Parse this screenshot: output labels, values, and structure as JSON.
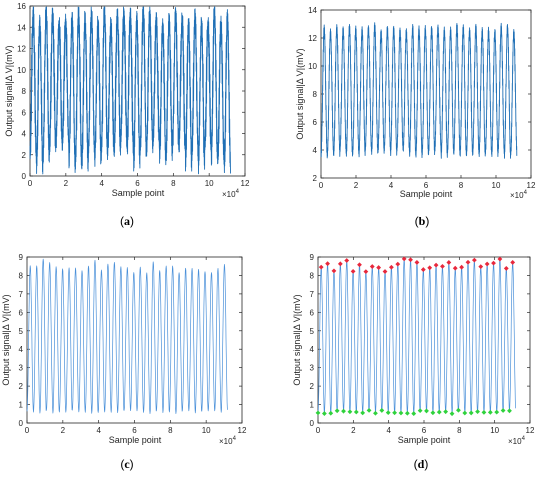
{
  "figure": {
    "panels": [
      {
        "id": "a",
        "label_text": "(a)",
        "letter": "a"
      },
      {
        "id": "b",
        "label_text": "(b)",
        "letter": "b"
      },
      {
        "id": "c",
        "label_text": "(c)",
        "letter": "c"
      },
      {
        "id": "d",
        "label_text": "(d)",
        "letter": "d"
      }
    ]
  },
  "chart_data": [
    {
      "id": "a",
      "type": "line",
      "title": "",
      "xlabel": "Sample point",
      "ylabel": "Output signal|Δ V|(mV)",
      "x_exponent_label": "×10",
      "x_exponent_power": "4",
      "xlim": [
        0,
        12
      ],
      "ylim": [
        0,
        16
      ],
      "xticks": [
        0,
        2,
        4,
        6,
        8,
        10,
        12
      ],
      "yticks": [
        0,
        2,
        4,
        6,
        8,
        10,
        12,
        14,
        16
      ],
      "x_range_data": [
        0,
        11.2
      ],
      "cycles": 31,
      "signal": {
        "peak_range": [
          14,
          15.5
        ],
        "trough_range": [
          0.8,
          3.5
        ],
        "noise_band_mV": 3.0
      },
      "line_color": "#1f6fb5",
      "grid": false
    },
    {
      "id": "b",
      "type": "line",
      "title": "",
      "xlabel": "Sample point",
      "ylabel": "Output signal|Δ V|(mV)",
      "x_exponent_label": "×10",
      "x_exponent_power": "4",
      "xlim": [
        0,
        12
      ],
      "ylim": [
        2,
        14
      ],
      "xticks": [
        0,
        2,
        4,
        6,
        8,
        10,
        12
      ],
      "yticks": [
        2,
        4,
        6,
        8,
        10,
        12,
        14
      ],
      "x_range_data": [
        0,
        11.2
      ],
      "cycles": 31,
      "signal": {
        "peak_range": [
          12.4,
          12.9
        ],
        "trough_range": [
          3.6,
          4.2
        ],
        "noise_band_mV": 0.8
      },
      "line_color": "#1f6fb5",
      "grid": false
    },
    {
      "id": "c",
      "type": "line",
      "title": "",
      "xlabel": "Sample point",
      "ylabel": "Output signal|Δ V|(mV)",
      "x_exponent_label": "×10",
      "x_exponent_power": "4",
      "xlim": [
        0,
        12
      ],
      "ylim": [
        0,
        9
      ],
      "xticks": [
        0,
        2,
        4,
        6,
        8,
        10,
        12
      ],
      "yticks": [
        0,
        1,
        2,
        3,
        4,
        5,
        6,
        7,
        8,
        9
      ],
      "x_range_data": [
        0,
        11.2
      ],
      "cycles": 31,
      "signal": {
        "peak_range": [
          8.1,
          8.9
        ],
        "trough_range": [
          0.5,
          0.7
        ],
        "noise_band_mV": 0.0
      },
      "line_color": "#4a90d9",
      "grid": false
    },
    {
      "id": "d",
      "type": "line",
      "title": "",
      "xlabel": "Sample point",
      "ylabel": "Output signal|Δ V|(mV)",
      "x_exponent_label": "×10",
      "x_exponent_power": "4",
      "xlim": [
        0,
        12
      ],
      "ylim": [
        0,
        9
      ],
      "xticks": [
        0,
        2,
        4,
        6,
        8,
        10,
        12
      ],
      "yticks": [
        0,
        1,
        2,
        3,
        4,
        5,
        6,
        7,
        8,
        9
      ],
      "x_range_data": [
        0,
        11.2
      ],
      "cycles": 31,
      "signal": {
        "peak_range": [
          8.1,
          8.9
        ],
        "trough_range": [
          0.5,
          0.7
        ],
        "noise_band_mV": 0.0
      },
      "line_color": "#4a90d9",
      "peak_marker_color": "#e8283c",
      "trough_marker_color": "#2fd23c",
      "grid": false
    }
  ]
}
